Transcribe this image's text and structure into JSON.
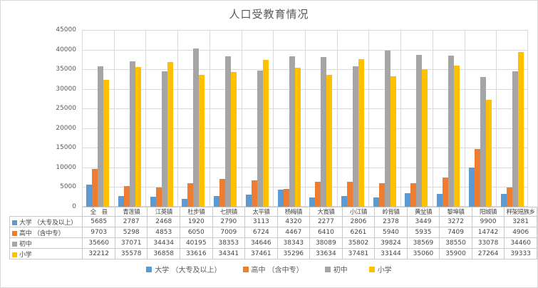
{
  "chart_data": {
    "type": "bar",
    "title": "人口受教育情况",
    "categories": [
      "全　县",
      "青莲镇",
      "江英镇",
      "杜步镇",
      "七拱镇",
      "太平镇",
      "杨梅镇",
      "大崀镇",
      "小江镇",
      "岭背镇",
      "黄坌镇",
      "黎埠镇",
      "阳城镇",
      "秤架瑶族乡"
    ],
    "series": [
      {
        "name": "大学 （大专及以上）",
        "color": "#5B9BD5",
        "values": [
          5685,
          2787,
          2468,
          1920,
          2790,
          3113,
          4320,
          2277,
          2806,
          2378,
          3449,
          3272,
          9900,
          3281
        ]
      },
      {
        "name": "高中 （含中专）",
        "color": "#ED7D31",
        "values": [
          9703,
          5298,
          4853,
          6050,
          7009,
          6724,
          4467,
          6410,
          6261,
          5940,
          5935,
          7409,
          14742,
          4906
        ]
      },
      {
        "name": "初中",
        "color": "#A5A5A5",
        "values": [
          35660,
          37071,
          34434,
          40195,
          38353,
          34646,
          38343,
          38089,
          35802,
          39824,
          38569,
          38550,
          33078,
          34460
        ]
      },
      {
        "name": "小学",
        "color": "#FFC000",
        "values": [
          32212,
          35578,
          36858,
          33616,
          34341,
          37461,
          35296,
          33634,
          37481,
          33144,
          35060,
          35900,
          27264,
          39333
        ]
      }
    ],
    "xlabel": "",
    "ylabel": "",
    "ylim": [
      0,
      45000
    ],
    "ytick_step": 5000,
    "yticks": [
      "45000",
      "40000",
      "35000",
      "30000",
      "25000",
      "20000",
      "15000",
      "10000",
      "5000",
      "0"
    ],
    "grid": "horizontal-and-vertical",
    "legend_position": "bottom",
    "data_table_shown": true
  },
  "colors": {
    "gridline": "#D9D9D9",
    "axis_text": "#595959",
    "title_text": "#595959",
    "table_border": "#C9C9C9",
    "table_text": "#444444",
    "frame_border": "#D9D9D9",
    "background": "#FFFFFF"
  }
}
